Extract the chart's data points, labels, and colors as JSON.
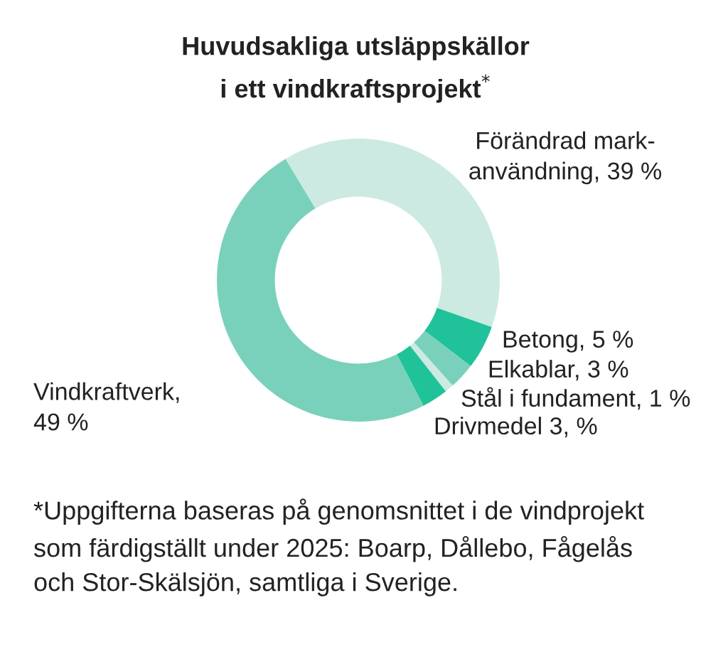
{
  "chart_data": {
    "type": "donut",
    "title": "Huvudsakliga utsläppskällor\ni ett vindkraftsprojekt$^{*}$",
    "categories": [
      "Förändrad mark-\nanvändning, 39 %",
      "Betong, 5 %",
      "Elkablar, 3 %",
      "Stål i fundament, 1 %",
      "Drivmedel 3, %",
      "Vindkraftverk,\n49 %"
    ],
    "values": [
      39,
      5,
      3,
      1,
      3,
      49
    ],
    "colors": [
      "#cceae1",
      "#20c29a",
      "#79d1bb",
      "#cceae1",
      "#20c29a",
      "#79d1bb"
    ],
    "annotations": [
      "*Uppgifterna baseras på genomsnittet i de vindprojekt\nsom färdigställt under 2025: Boarp, Dållebo, Fågelås\noch Stor-Skälsjön, samtliga i Sverige."
    ]
  }
}
